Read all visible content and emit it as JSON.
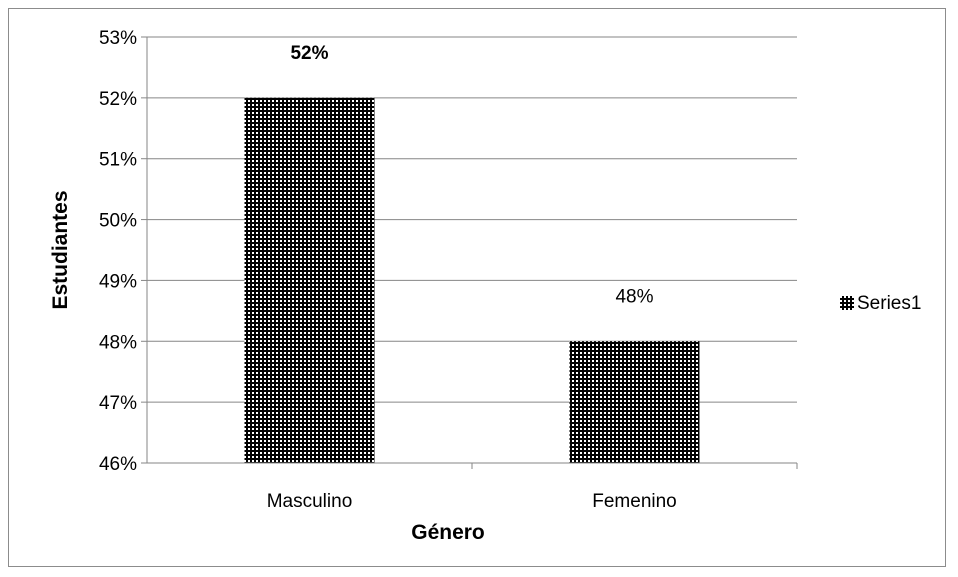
{
  "chart_data": {
    "type": "bar",
    "categories": [
      "Masculino",
      "Femenino"
    ],
    "series": [
      {
        "name": "Series1",
        "values": [
          52,
          48
        ]
      }
    ],
    "data_labels": [
      "52%",
      "48%"
    ],
    "xlabel": "Género",
    "ylabel": "Estudiantes",
    "ylim": [
      46,
      53
    ],
    "yticks": [
      "46%",
      "47%",
      "48%",
      "49%",
      "50%",
      "51%",
      "52%",
      "53%"
    ],
    "grid": true,
    "legend": {
      "position": "right",
      "entries": [
        "Series1"
      ]
    },
    "colors": {
      "bar_fill": "#000000",
      "bar_pattern": "#ffffff",
      "grid": "#868686",
      "axis": "#868686"
    }
  }
}
